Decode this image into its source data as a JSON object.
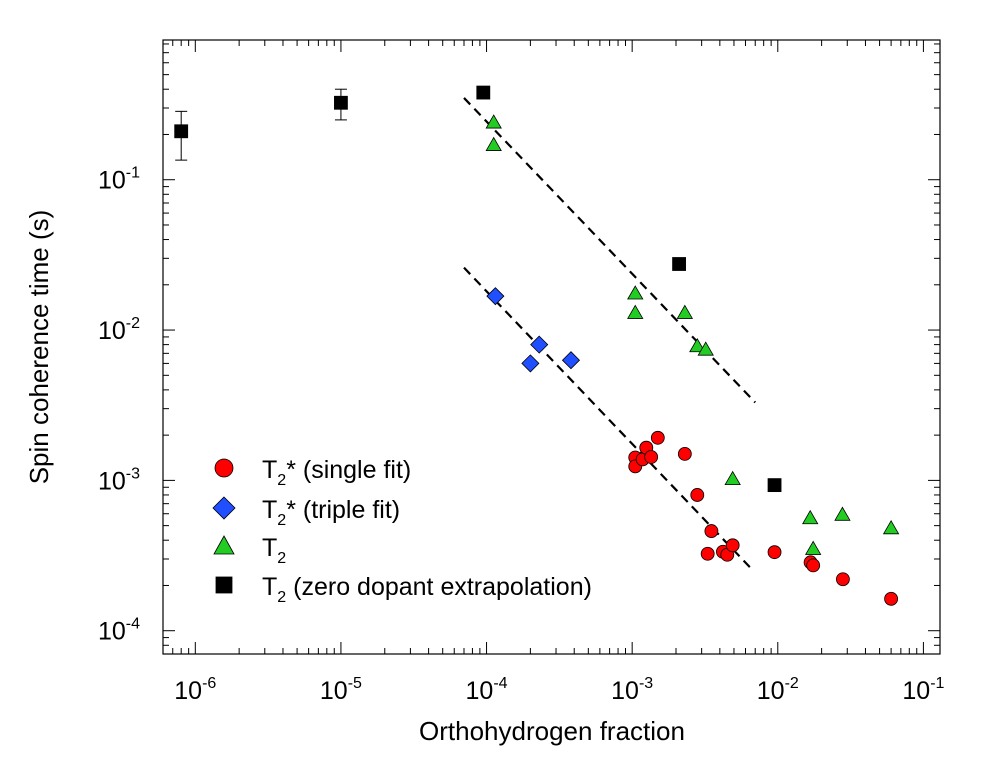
{
  "chart_data": {
    "type": "scatter",
    "xscale": "log",
    "yscale": "log",
    "xlim": [
      6e-07,
      0.13
    ],
    "ylim": [
      7e-05,
      0.85
    ],
    "xlabel": "Orthohydrogen fraction",
    "ylabel": "Spin coherence time (s)",
    "x_ticks": [
      {
        "base": "10",
        "exp": "-6",
        "value": 1e-06
      },
      {
        "base": "10",
        "exp": "-5",
        "value": 1e-05
      },
      {
        "base": "10",
        "exp": "-4",
        "value": 0.0001
      },
      {
        "base": "10",
        "exp": "-3",
        "value": 0.001
      },
      {
        "base": "10",
        "exp": "-2",
        "value": 0.01
      },
      {
        "base": "10",
        "exp": "-1",
        "value": 0.1
      }
    ],
    "y_ticks": [
      {
        "base": "10",
        "exp": "-4",
        "value": 0.0001
      },
      {
        "base": "10",
        "exp": "-3",
        "value": 0.001
      },
      {
        "base": "10",
        "exp": "-2",
        "value": 0.01
      },
      {
        "base": "10",
        "exp": "-1",
        "value": 0.1
      }
    ],
    "series": [
      {
        "name": "T2* (single fit)",
        "label_main": "T",
        "label_sub": "2",
        "label_rest": "* (single fit)",
        "marker": "circle",
        "color": "#ff0000",
        "points": [
          [
            0.00105,
            0.00142
          ],
          [
            0.00105,
            0.00124
          ],
          [
            0.00118,
            0.00138
          ],
          [
            0.00125,
            0.00165
          ],
          [
            0.00135,
            0.00143
          ],
          [
            0.0015,
            0.00192
          ],
          [
            0.0023,
            0.0015
          ],
          [
            0.0028,
            0.0008
          ],
          [
            0.0033,
            0.000325
          ],
          [
            0.0035,
            0.00046
          ],
          [
            0.0042,
            0.000335
          ],
          [
            0.0045,
            0.00032
          ],
          [
            0.0049,
            0.00037
          ],
          [
            0.0095,
            0.000333
          ],
          [
            0.0168,
            0.000285
          ],
          [
            0.0175,
            0.000272
          ],
          [
            0.028,
            0.00022
          ],
          [
            0.06,
            0.000163
          ]
        ]
      },
      {
        "name": "T2* (triple fit)",
        "label_main": "T",
        "label_sub": "2",
        "label_rest": "* (triple fit)",
        "marker": "diamond",
        "color": "#1f4fff",
        "points": [
          [
            0.000115,
            0.0168
          ],
          [
            0.0002,
            0.006
          ],
          [
            0.00023,
            0.008
          ],
          [
            0.00038,
            0.0063
          ]
        ]
      },
      {
        "name": "T2",
        "label_main": "T",
        "label_sub": "2",
        "label_rest": "",
        "marker": "triangle",
        "color": "#22cc22",
        "points": [
          [
            0.000112,
            0.24
          ],
          [
            0.000112,
            0.17
          ],
          [
            0.00105,
            0.0175
          ],
          [
            0.00105,
            0.013
          ],
          [
            0.0023,
            0.013
          ],
          [
            0.0028,
            0.0078
          ],
          [
            0.0032,
            0.0074
          ],
          [
            0.0049,
            0.00102
          ],
          [
            0.0167,
            0.00056
          ],
          [
            0.0175,
            0.00035
          ],
          [
            0.0278,
            0.00059
          ],
          [
            0.06,
            0.00048
          ]
        ]
      },
      {
        "name": "T2 (zero dopant extrapolation)",
        "label_main": "T",
        "label_sub": "2",
        "label_rest": " (zero dopant extrapolation)",
        "marker": "square",
        "color": "#000000",
        "points": [
          {
            "x": 8e-07,
            "y": 0.21,
            "ylow": 0.135,
            "yhigh": 0.285
          },
          {
            "x": 1e-05,
            "y": 0.325,
            "ylow": 0.25,
            "yhigh": 0.4
          },
          {
            "x": 9.5e-05,
            "y": 0.38
          },
          {
            "x": 0.0021,
            "y": 0.0275
          },
          {
            "x": 0.0095,
            "y": 0.00093
          }
        ]
      }
    ],
    "fit_lines": [
      {
        "name": "T2 fit",
        "style": "dashed",
        "from": [
          7e-05,
          0.35
        ],
        "to": [
          0.007,
          0.0033
        ]
      },
      {
        "name": "T2* fit",
        "style": "dashed",
        "from": [
          7e-05,
          0.026
        ],
        "to": [
          0.0068,
          0.00025
        ]
      }
    ],
    "legend_position": "lower-left",
    "grid": false
  }
}
